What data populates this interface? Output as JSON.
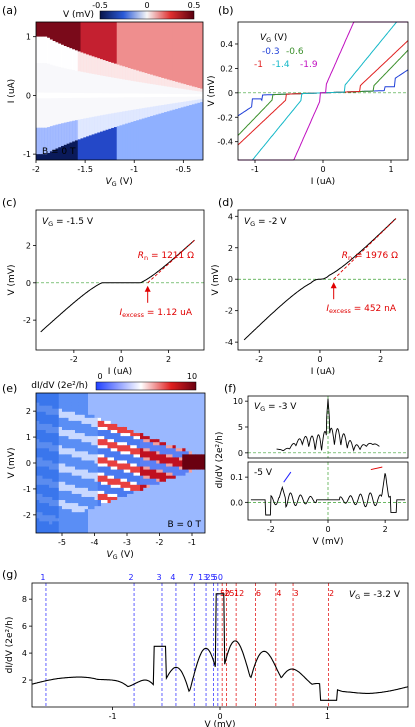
{
  "chart_data": [
    {
      "panel": "(a)",
      "type": "heatmap",
      "colorbar": {
        "label": "V (mV)",
        "ticks": [
          "-0.5",
          "0",
          "0.5"
        ],
        "range": [
          -0.5,
          0.5
        ]
      },
      "x_ticks": [
        "-2",
        "-1.5",
        "-1",
        "-0.5"
      ],
      "xlabel": "V",
      "xlabel_sub": "G",
      "xlabel_unit": " (V)",
      "y_ticks": [
        "1",
        "0",
        "-1"
      ],
      "ylabel": "I (uA)",
      "annotation": "B = 0 T",
      "xlim": [
        -2,
        -0.3
      ],
      "ylim": [
        -1.1,
        1.25
      ]
    },
    {
      "panel": "(b)",
      "type": "line",
      "legend_title": "V",
      "legend_sub": "G",
      "legend_unit": " (V)",
      "series": [
        {
          "name": "-0.3",
          "color": "#1f3fd8",
          "switch": 0.9,
          "slope": 0.35
        },
        {
          "name": "-0.6",
          "color": "#3a8f2a",
          "switch": 0.75,
          "slope": 0.55
        },
        {
          "name": "-1",
          "color": "#e02020",
          "switch": 0.55,
          "slope": 0.5
        },
        {
          "name": "-1.4",
          "color": "#15b8c8",
          "switch": 0.32,
          "slope": 0.65
        },
        {
          "name": "-1.9",
          "color": "#c010c0",
          "switch": 0.04,
          "slope": 1.2
        }
      ],
      "x_ticks": [
        "-1",
        "0",
        "1"
      ],
      "xlabel": "I (uA)",
      "y_ticks": [
        "0.4",
        "0.2",
        "0",
        "-0.2",
        "-0.4"
      ],
      "ylabel": "V (mV)",
      "xlim": [
        -1.25,
        1.25
      ],
      "ylim": [
        -0.55,
        0.58
      ]
    },
    {
      "panel": "(c)",
      "type": "line",
      "annotation_vg": "V",
      "annotation_vg_sub": "G",
      "annotation_vg_val": " = -1.5 V",
      "rn_label": "R",
      "rn_sub": "n",
      "rn_val": " = 1211 Ω",
      "iex_label": "I",
      "iex_sub": "excess",
      "iex_val": " = 1.12 uA",
      "x_ticks": [
        "-2",
        "0",
        "2"
      ],
      "xlabel": "I (uA)",
      "y_ticks": [
        "2",
        "0",
        "-2"
      ],
      "ylabel": "V (mV)",
      "xlim": [
        -3.6,
        3.5
      ],
      "ylim": [
        -3.6,
        3.9
      ],
      "rn": 1.211,
      "iex": 1.12
    },
    {
      "panel": "(d)",
      "type": "line",
      "annotation_vg": "V",
      "annotation_vg_sub": "G",
      "annotation_vg_val": " = -2 V",
      "rn_label": "R",
      "rn_sub": "n",
      "rn_val": " = 1976 Ω",
      "iex_label": "I",
      "iex_sub": "excess",
      "iex_val": " = 452 nA",
      "x_ticks": [
        "-2",
        "0",
        "2"
      ],
      "xlabel": "I (uA)",
      "y_ticks": [
        "4",
        "2",
        "0",
        "-2",
        "-4"
      ],
      "ylabel": "V (mV)",
      "xlim": [
        -2.7,
        2.9
      ],
      "ylim": [
        -4.5,
        4.4
      ],
      "rn": 1.976,
      "iex": 0.452
    },
    {
      "panel": "(e)",
      "type": "heatmap",
      "colorbar": {
        "label": "dI/dV (2e²/h)",
        "ticks": [
          "0",
          "10"
        ],
        "range": [
          0,
          10
        ]
      },
      "x_ticks": [
        "-5",
        "-4",
        "-3",
        "-2",
        "-1"
      ],
      "xlabel": "V",
      "xlabel_sub": "G",
      "xlabel_unit": " (V)",
      "y_ticks": [
        "2",
        "1",
        "0",
        "-1",
        "-2"
      ],
      "ylabel": "V (mV)",
      "annotation": "B = 0 T",
      "xlim": [
        -5.8,
        -0.6
      ],
      "ylim": [
        -2.7,
        2.7
      ]
    },
    {
      "panel": "(f)",
      "type": "line",
      "ylabel": "dI/dV (2e²/h)",
      "xlabel": "V (mV)",
      "top": {
        "annotation_vg": "V",
        "annotation_vg_sub": "G",
        "annotation_vg_val": " = -3 V",
        "y_ticks": [
          "10",
          "5",
          "0"
        ],
        "ylim": [
          -1,
          11
        ]
      },
      "bottom": {
        "annotation": "-5 V",
        "y_ticks": [
          "0.1",
          "0.0"
        ],
        "ylim": [
          -0.07,
          0.16
        ]
      },
      "x_ticks": [
        "-2",
        "0",
        "2"
      ],
      "xlim": [
        -2.8,
        2.8
      ]
    },
    {
      "panel": "(g)",
      "type": "line",
      "annotation_vg": "V",
      "annotation_vg_sub": "G",
      "annotation_vg_val": " = -3.2 V",
      "xlabel": "V (mV)",
      "ylabel": "dI/dV (2e²/h)",
      "x_ticks": [
        "-1",
        "0",
        "1"
      ],
      "y_ticks": [
        "8",
        "6",
        "4",
        "2"
      ],
      "xlim": [
        -1.75,
        1.75
      ],
      "ylim": [
        0,
        9.2
      ],
      "markers_blue": [
        {
          "x": -1.62,
          "label": "1"
        },
        {
          "x": -0.8,
          "label": "2"
        },
        {
          "x": -0.54,
          "label": "3"
        },
        {
          "x": -0.41,
          "label": "4"
        },
        {
          "x": -0.24,
          "label": "7"
        },
        {
          "x": -0.13,
          "label": "13"
        },
        {
          "x": -0.06,
          "label": "25"
        },
        {
          "x": -0.02,
          "label": "50"
        }
      ],
      "markers_red": [
        {
          "x": 0.02,
          "label": "50"
        },
        {
          "x": 0.06,
          "label": "25"
        },
        {
          "x": 0.15,
          "label": "12"
        },
        {
          "x": 0.33,
          "label": "6"
        },
        {
          "x": 0.52,
          "label": "4"
        },
        {
          "x": 0.68,
          "label": "3"
        },
        {
          "x": 1.01,
          "label": "2"
        }
      ]
    }
  ]
}
